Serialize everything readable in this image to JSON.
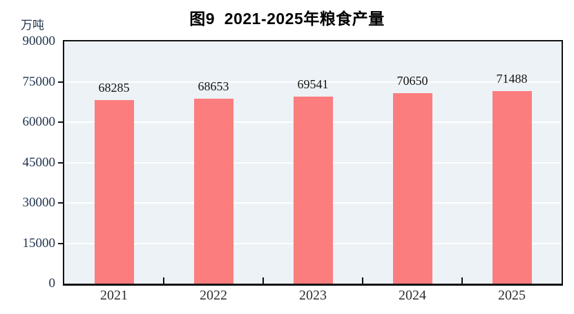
{
  "chart": {
    "title": "图9  2021-2025年粮食产量",
    "unit": "万吨"
  },
  "chart_data": {
    "type": "bar",
    "title": "图9  2021-2025年粮食产量",
    "categories": [
      "2021",
      "2022",
      "2023",
      "2024",
      "2025"
    ],
    "values": [
      68285,
      68653,
      69541,
      70650,
      71488
    ],
    "xlabel": "",
    "ylabel": "万吨",
    "ylim": [
      0,
      90000
    ],
    "yticks": [
      0,
      15000,
      30000,
      45000,
      60000,
      75000,
      90000
    ],
    "grid": true,
    "legend": "none",
    "bar_color": "#FC7D7E",
    "plot_background": "#ECF2F6",
    "gridline_color": "#FFFFFF",
    "frame_color": "#111111"
  }
}
